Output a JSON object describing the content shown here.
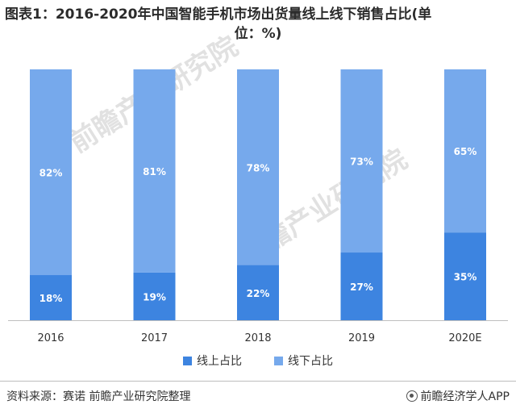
{
  "title_line1": "图表1：2016-2020年中国智能手机市场出货量线上线下销售占比(单",
  "title_line2": "位：%)",
  "watermark": "前瞻产业研究院",
  "colors": {
    "online": "#3d84e0",
    "offline": "#76a9ec",
    "axis": "#bfbfbf"
  },
  "chart_data": {
    "type": "bar",
    "stacked": true,
    "categories": [
      "2016",
      "2017",
      "2018",
      "2019",
      "2020E"
    ],
    "series": [
      {
        "name": "线上占比",
        "values": [
          18,
          19,
          22,
          27,
          35
        ]
      },
      {
        "name": "线下占比",
        "values": [
          82,
          81,
          78,
          73,
          65
        ]
      }
    ],
    "data_labels": {
      "online": [
        "18%",
        "19%",
        "22%",
        "27%",
        "35%"
      ],
      "offline": [
        "82%",
        "81%",
        "78%",
        "73%",
        "65%"
      ]
    },
    "ylim": [
      0,
      100
    ],
    "legend_position": "bottom",
    "grid": false
  },
  "legend": {
    "online": "线上占比",
    "offline": "线下占比"
  },
  "footer": {
    "source": "资料来源：赛诺 前瞻产业研究院整理",
    "brand": "前瞻经济学人APP"
  }
}
